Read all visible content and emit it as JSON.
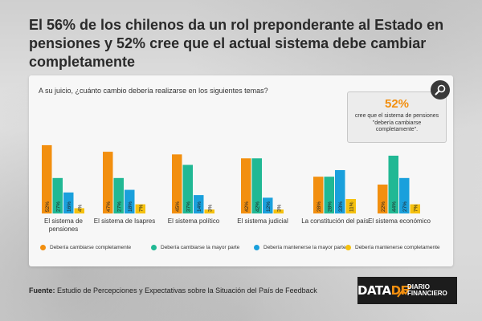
{
  "header": {
    "title": "El 56% de los chilenos da un rol preponderante al Estado en pensiones y 52% cree que el actual sistema debe cambiar completamente"
  },
  "question": "A su juicio, ¿cuánto cambio debería realizarse en los siguientes temas?",
  "callout": {
    "value": "52%",
    "text": "cree que el sistema de pensiones \"debería cambiarse completamente\".",
    "icon": "magnifier-icon"
  },
  "chart_data": {
    "type": "bar",
    "categories": [
      [
        "El sistema de",
        "pensiones"
      ],
      [
        "El sistema de Isapres"
      ],
      [
        "El sistema político"
      ],
      [
        "El sistema judicial"
      ],
      [
        "La constitución del país"
      ],
      [
        "El sistema económico"
      ]
    ],
    "series": [
      {
        "name": "Debería cambiarse completamente",
        "color": "#f28f0f",
        "values": [
          52,
          47,
          45,
          42,
          28,
          22
        ]
      },
      {
        "name": "Debería cambiarse la mayor parte",
        "color": "#21b894",
        "values": [
          27,
          27,
          37,
          42,
          28,
          44
        ]
      },
      {
        "name": "Debería mantenerse la mayor parte",
        "color": "#1aa0dc",
        "values": [
          16,
          18,
          14,
          12,
          33,
          27
        ]
      },
      {
        "name": "Debería mantenerse completamente",
        "color": "#f5c10f",
        "values": [
          4,
          7,
          3,
          3,
          11,
          7
        ]
      }
    ],
    "value_suffix": "%",
    "ylim": [
      0,
      55
    ],
    "legend_position": "bottom"
  },
  "footer": {
    "source_label": "Fuente:",
    "source_text": " Estudio de Percepciones y Expectativas sobre la Situación del País de Feedback",
    "logo_data": "DATA",
    "logo_df": "DF",
    "logo_diario": "DIARIO",
    "logo_financiero": "FINANCIERO"
  }
}
